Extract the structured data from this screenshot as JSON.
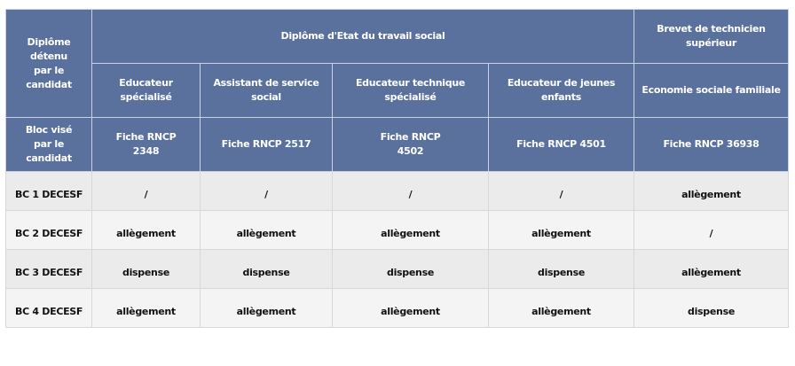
{
  "header": {
    "corner_label": "Diplôme\ndétenu\npar le candidat",
    "group_des": "Diplôme d'Etat du travail social",
    "group_bts": "Brevet de technicien supérieur",
    "diplomas": [
      "Educateur spécialisé",
      "Assistant de service social",
      "Educateur technique spécialisé",
      "Educateur de jeunes enfants",
      "Economie sociale familiale"
    ],
    "bloc_label": "Bloc visé\npar le candidat",
    "fiches": [
      "Fiche RNCP 2348",
      "Fiche RNCP 2517",
      "Fiche RNCP 4502",
      "Fiche RNCP 4501",
      "Fiche RNCP 36938"
    ]
  },
  "rows": [
    {
      "bloc": "BC 1 DECESF",
      "values": [
        "/",
        "/",
        "/",
        "/",
        "allègement"
      ]
    },
    {
      "bloc": "BC 2 DECESF",
      "values": [
        "allègement",
        "allègement",
        "allègement",
        "allègement",
        "/"
      ]
    },
    {
      "bloc": "BC 3 DECESF",
      "values": [
        "dispense",
        "dispense",
        "dispense",
        "dispense",
        "allègement"
      ]
    },
    {
      "bloc": "BC 4 DECESF",
      "values": [
        "allègement",
        "allègement",
        "allègement",
        "allègement",
        "dispense"
      ]
    }
  ],
  "colors": {
    "header_bg": "#5a719e",
    "row_odd": "#ebebeb",
    "row_even": "#f4f4f4"
  }
}
